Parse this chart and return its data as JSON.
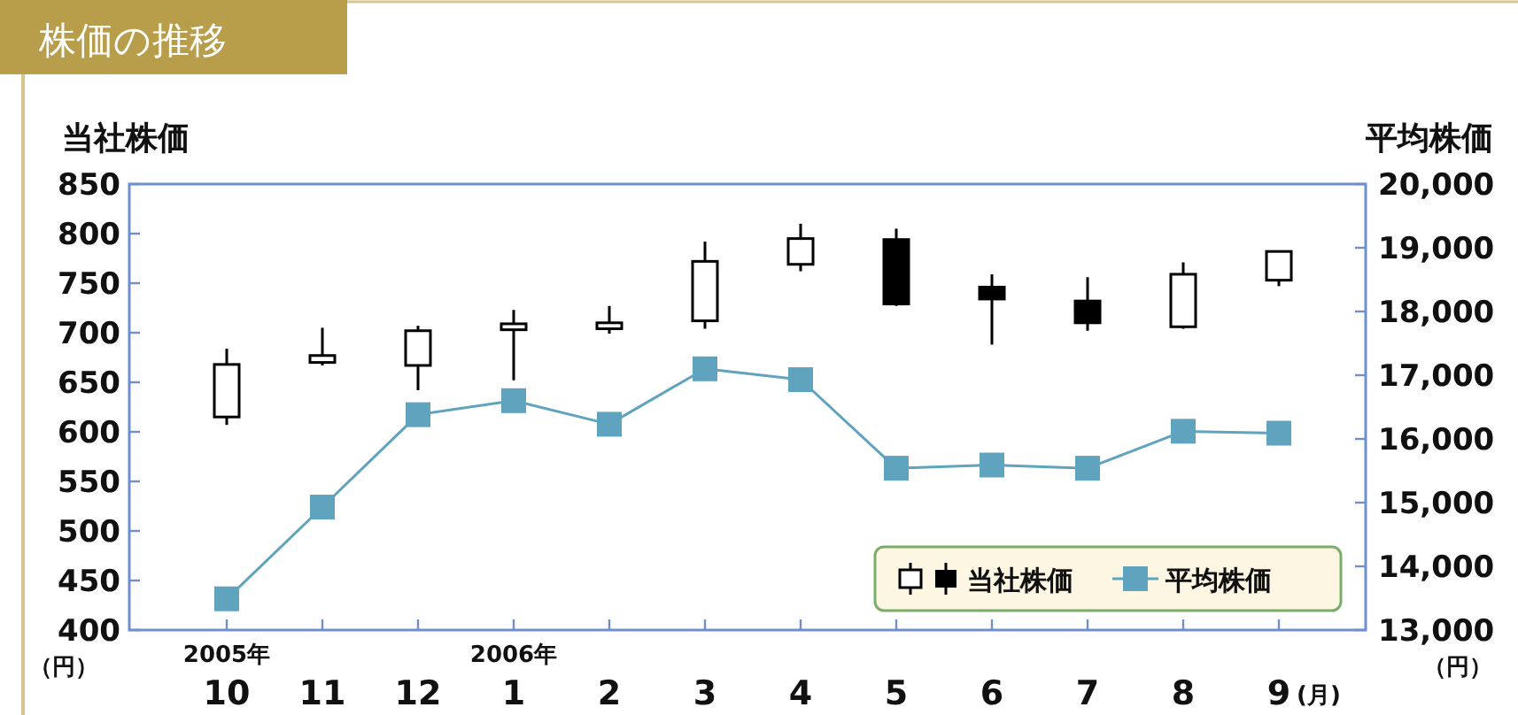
{
  "chart_data": {
    "type": "candlestick",
    "title": "株価の推移",
    "ylabel": "当社株価",
    "y2label": "平均株価",
    "categories": [
      "10",
      "11",
      "12",
      "1",
      "2",
      "3",
      "4",
      "5",
      "6",
      "7",
      "8",
      "9"
    ],
    "series": [
      {
        "name": "当社株価",
        "color": "#000000",
        "ohlc": [
          [
            615,
            684,
            607,
            668
          ],
          [
            670,
            705,
            667,
            677
          ],
          [
            667,
            707,
            642,
            702
          ],
          [
            703,
            723,
            652,
            709
          ],
          [
            704,
            727,
            699,
            710
          ],
          [
            712,
            792,
            704,
            772
          ],
          [
            769,
            810,
            762,
            795
          ],
          [
            794,
            805,
            727,
            729
          ],
          [
            746,
            759,
            688,
            734
          ],
          [
            732,
            756,
            702,
            710
          ],
          [
            706,
            771,
            704,
            759
          ],
          [
            753,
            783,
            747,
            782
          ]
        ]
      },
      {
        "name": "平均株価",
        "type": "line",
        "axis": "y2",
        "color": "#5fa3bf",
        "marker": "square",
        "values": [
          13490,
          14930,
          16380,
          16600,
          16230,
          17100,
          16930,
          15540,
          15590,
          15540,
          16120,
          16090
        ]
      }
    ],
    "ylim": [
      400,
      850
    ],
    "yticks": [
      400,
      450,
      500,
      550,
      600,
      650,
      700,
      750,
      800,
      850
    ],
    "y2lim": [
      13000,
      20000
    ],
    "y2ticks": [
      {
        "value": 13000,
        "label": "13,000"
      },
      {
        "value": 14000,
        "label": "14,000"
      },
      {
        "value": 15000,
        "label": "15,000"
      },
      {
        "value": 16000,
        "label": "16,000"
      },
      {
        "value": 17000,
        "label": "17,000"
      },
      {
        "value": 18000,
        "label": "18,000"
      },
      {
        "value": 19000,
        "label": "19,000"
      },
      {
        "value": 20000,
        "label": "20,000"
      }
    ],
    "legend": "bottom right",
    "annotations": [
      "2005年",
      "2006年",
      "（円）",
      "（円）",
      "(月)"
    ]
  }
}
